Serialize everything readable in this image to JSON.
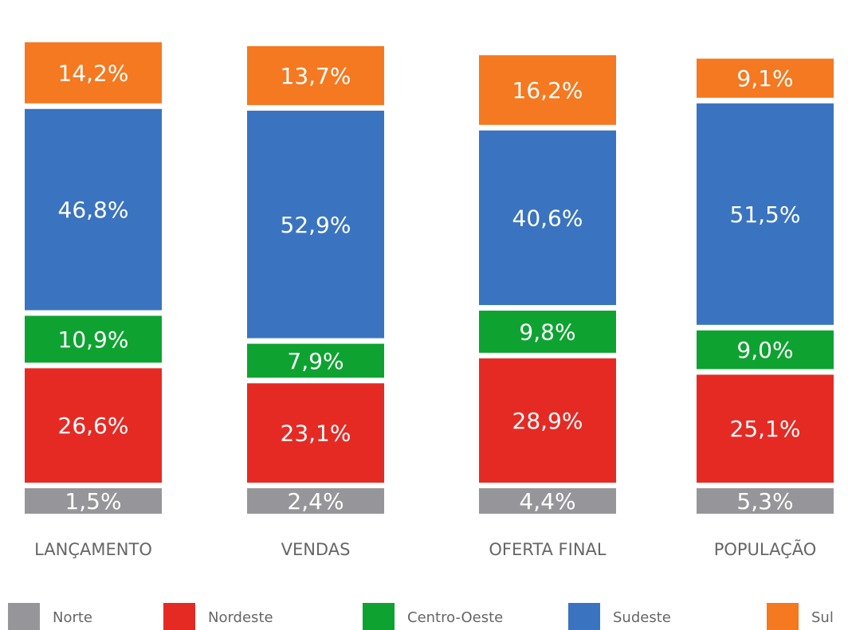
{
  "chart_data": {
    "type": "stacked_bar",
    "categories": [
      "LANÇAMENTO",
      "VENDAS",
      "OFERTA FINAL",
      "POPULAÇÃO"
    ],
    "series": [
      {
        "name": "Norte",
        "color": "#96969a",
        "values": [
          1.5,
          2.4,
          4.4,
          5.3
        ],
        "value_labels": [
          "1,5%",
          "2,4%",
          "4,4%",
          "5,3%"
        ]
      },
      {
        "name": "Nordeste",
        "color": "#e52a24",
        "values": [
          26.6,
          23.1,
          28.9,
          25.1
        ],
        "value_labels": [
          "26,6%",
          "23,1%",
          "28,9%",
          "25,1%"
        ]
      },
      {
        "name": "Centro-Oeste",
        "color": "#0ea331",
        "values": [
          10.9,
          7.9,
          9.8,
          9.0
        ],
        "value_labels": [
          "10,9%",
          "7,9%",
          "9,8%",
          "9,0%"
        ]
      },
      {
        "name": "Sudeste",
        "color": "#3a74c0",
        "values": [
          46.8,
          52.9,
          40.6,
          51.5
        ],
        "value_labels": [
          "46,8%",
          "52,9%",
          "40,6%",
          "51,5%"
        ]
      },
      {
        "name": "Sul",
        "color": "#f47920",
        "values": [
          14.2,
          13.7,
          16.2,
          9.1
        ],
        "value_labels": [
          "14,2%",
          "13,7%",
          "16,2%",
          "9,1%"
        ]
      }
    ],
    "legend": "bottom"
  }
}
